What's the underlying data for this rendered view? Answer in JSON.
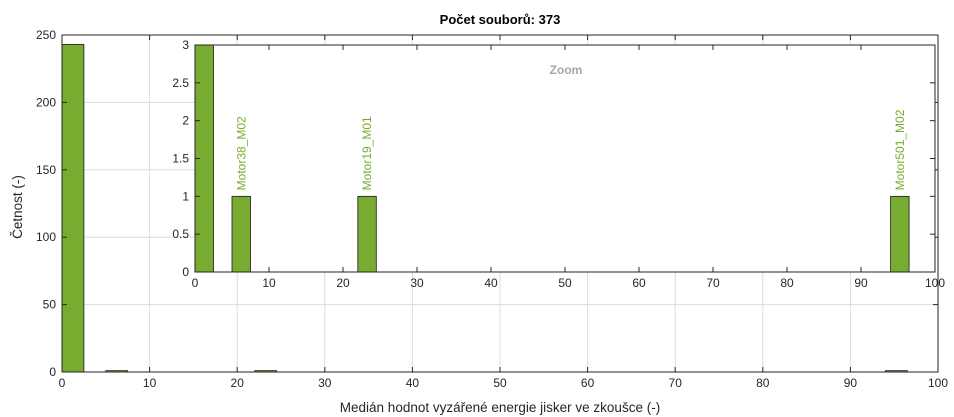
{
  "chart_data": [
    {
      "type": "bar",
      "title": "Počet souborů: 373",
      "xlabel": "Medián hodnot vyzářené energie jisker ve zkoušce (-)",
      "ylabel": "Četnost (-)",
      "xlim": [
        0,
        100
      ],
      "ylim": [
        0,
        250
      ],
      "xticks": [
        "0",
        "10",
        "20",
        "30",
        "40",
        "50",
        "60",
        "70",
        "80",
        "90",
        "100"
      ],
      "yticks": [
        "0",
        "50",
        "100",
        "150",
        "200",
        "250"
      ],
      "bar_width": 2.5,
      "bars": [
        {
          "x": 0,
          "value": 243
        },
        {
          "x": 5,
          "value": 1
        },
        {
          "x": 22,
          "value": 1
        },
        {
          "x": 94,
          "value": 1
        }
      ],
      "grid": true,
      "bar_color": "#77ac30"
    },
    {
      "type": "bar",
      "title": "Zoom",
      "xlim": [
        0,
        100
      ],
      "ylim": [
        0,
        3
      ],
      "xticks": [
        "0",
        "10",
        "20",
        "30",
        "40",
        "50",
        "60",
        "70",
        "80",
        "90",
        "100"
      ],
      "yticks": [
        "0",
        "0.5",
        "1",
        "1.5",
        "2",
        "2.5",
        "3"
      ],
      "bar_width": 2.5,
      "bars": [
        {
          "x": 0,
          "value": 3
        },
        {
          "x": 5,
          "value": 1,
          "label": "Motor38_M02"
        },
        {
          "x": 22,
          "value": 1,
          "label": "Motor19_M01"
        },
        {
          "x": 94,
          "value": 1,
          "label": "Motor501_M02"
        }
      ],
      "grid": false,
      "bar_color": "#77ac30"
    }
  ]
}
